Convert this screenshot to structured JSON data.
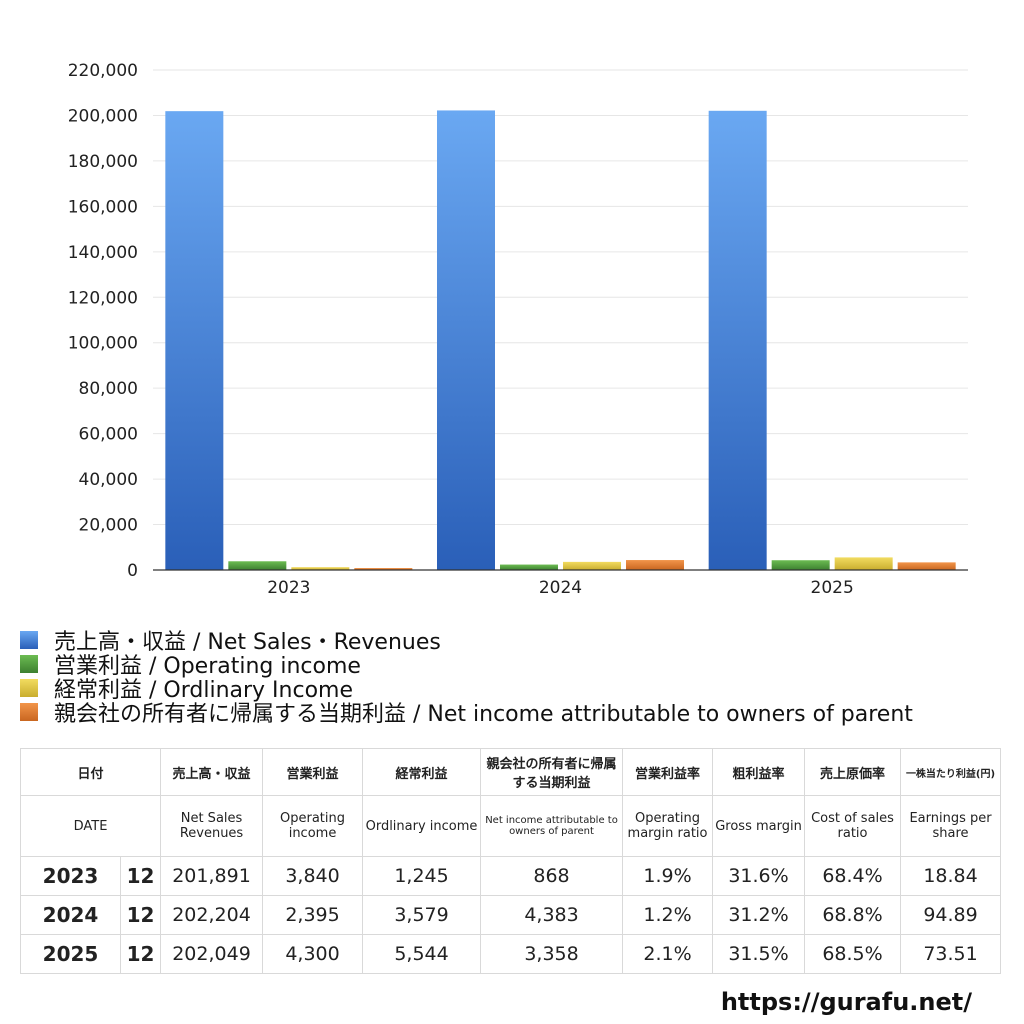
{
  "chart_data": {
    "type": "bar",
    "categories": [
      "2023",
      "2024",
      "2025"
    ],
    "series": [
      {
        "name": "売上高・収益 / Net Sales・Revenues",
        "values": [
          201891,
          202204,
          202049
        ],
        "color": "#4a86d8"
      },
      {
        "name": "営業利益 / Operating income",
        "values": [
          3840,
          2395,
          4300
        ],
        "color": "#4f9a3c"
      },
      {
        "name": "経常利益 / Ordlinary Income",
        "values": [
          1245,
          3579,
          5544
        ],
        "color": "#e0c640"
      },
      {
        "name": "親会社の所有者に帰属する当期利益 / Net income attributable to owners of parent",
        "values": [
          868,
          4383,
          3358
        ],
        "color": "#e07b2c"
      }
    ],
    "ylim": [
      0,
      220000
    ],
    "yticks": [
      "0",
      "20,000",
      "40,000",
      "60,000",
      "80,000",
      "100,000",
      "120,000",
      "140,000",
      "160,000",
      "180,000",
      "200,000",
      "220,000"
    ],
    "grid": true,
    "legend_position": "bottom"
  },
  "table": {
    "headers_ja": [
      "日付",
      "売上高・収益",
      "営業利益",
      "経常利益",
      "親会社の所有者に帰属する当期利益",
      "営業利益率",
      "粗利益率",
      "売上原価率",
      "一株当たり利益(円)"
    ],
    "headers_en": [
      "DATE",
      "Net Sales Revenues",
      "Operating income",
      "Ordlinary income",
      "Net income attributable to owners of parent",
      "Operating margin ratio",
      "Gross margin",
      "Cost of sales ratio",
      "Earnings per share"
    ],
    "rows": [
      {
        "year": "2023",
        "month": "12",
        "net_sales": "201,891",
        "operating_income": "3,840",
        "ordinary_income": "1,245",
        "net_income": "868",
        "operating_margin": "1.9%",
        "gross_margin": "31.6%",
        "cost_ratio": "68.4%",
        "eps": "18.84"
      },
      {
        "year": "2024",
        "month": "12",
        "net_sales": "202,204",
        "operating_income": "2,395",
        "ordinary_income": "3,579",
        "net_income": "4,383",
        "operating_margin": "1.2%",
        "gross_margin": "31.2%",
        "cost_ratio": "68.8%",
        "eps": "94.89"
      },
      {
        "year": "2025",
        "month": "12",
        "net_sales": "202,049",
        "operating_income": "4,300",
        "ordinary_income": "5,544",
        "net_income": "3,358",
        "operating_margin": "2.1%",
        "gross_margin": "31.5%",
        "cost_ratio": "68.5%",
        "eps": "73.51"
      }
    ]
  },
  "source": "https://gurafu.net/"
}
